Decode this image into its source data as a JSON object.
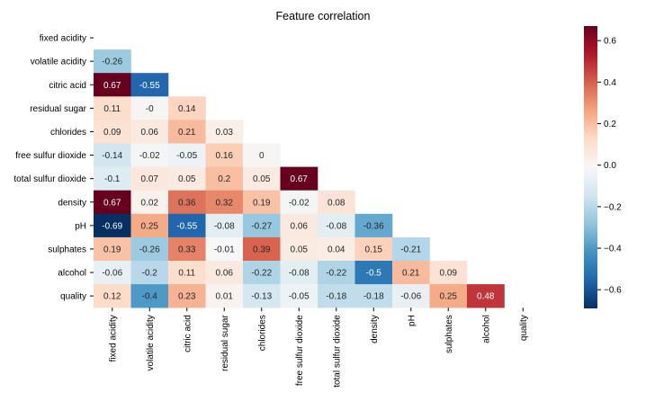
{
  "chart_data": {
    "type": "heatmap",
    "title": "Feature correlation",
    "variables": [
      "fixed acidity",
      "volatile acidity",
      "citric acid",
      "residual sugar",
      "chlorides",
      "free sulfur dioxide",
      "total sulfur dioxide",
      "density",
      "pH",
      "sulphates",
      "alcohol",
      "quality"
    ],
    "mask": "upper-triangle-including-diagonal",
    "lower_triangle_values": [
      [],
      [
        "-0.26"
      ],
      [
        "0.67",
        "-0.55"
      ],
      [
        "0.11",
        "-0",
        "0.14"
      ],
      [
        "0.09",
        "0.06",
        "0.21",
        "0.03"
      ],
      [
        "-0.14",
        "-0.02",
        "-0.05",
        "0.16",
        "0"
      ],
      [
        "-0.1",
        "0.07",
        "0.05",
        "0.2",
        "0.05",
        "0.67"
      ],
      [
        "0.67",
        "0.02",
        "0.36",
        "0.32",
        "0.19",
        "-0.02",
        "0.08"
      ],
      [
        "-0.69",
        "0.25",
        "-0.55",
        "-0.08",
        "-0.27",
        "0.06",
        "-0.08",
        "-0.36"
      ],
      [
        "0.19",
        "-0.26",
        "0.33",
        "-0.01",
        "0.39",
        "0.05",
        "0.04",
        "0.15",
        "-0.21"
      ],
      [
        "-0.06",
        "-0.2",
        "0.11",
        "0.06",
        "-0.22",
        "-0.08",
        "-0.22",
        "-0.5",
        "0.21",
        "0.09"
      ],
      [
        "0.12",
        "-0.4",
        "0.23",
        "0.01",
        "-0.13",
        "-0.05",
        "-0.18",
        "-0.18",
        "-0.06",
        "0.25",
        "0.48"
      ]
    ],
    "colormap": "RdBu_r",
    "vmin": -0.69,
    "vmax": 0.67,
    "colorbar_ticks": [
      "0.6",
      "0.4",
      "0.2",
      "0.0",
      "−0.2",
      "−0.4",
      "−0.6"
    ],
    "legend": "colorbar-right"
  }
}
